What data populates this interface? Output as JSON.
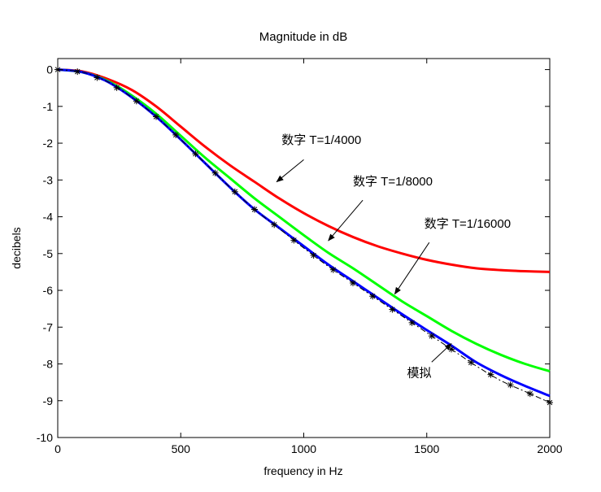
{
  "chart_data": {
    "type": "line",
    "title": "Magnitude in dB",
    "xlabel": "frequency in Hz",
    "ylabel": "decibels",
    "xlim": [
      0,
      2000
    ],
    "ylim": [
      -10,
      0.3
    ],
    "grid": false,
    "xticks": [
      0,
      500,
      1000,
      1500,
      2000
    ],
    "xtick_labels": [
      "0",
      "500",
      "1000",
      "1500",
      "2000"
    ],
    "yticks": [
      0,
      -1,
      -2,
      -3,
      -4,
      -5,
      -6,
      -7,
      -8,
      -9,
      -10
    ],
    "ytick_labels": [
      "0",
      "-1",
      "-2",
      "-3",
      "-4",
      "-5",
      "-6",
      "-7",
      "-8",
      "-9",
      "-10"
    ],
    "x": [
      0,
      100,
      200,
      300,
      400,
      500,
      600,
      700,
      800,
      900,
      1000,
      1100,
      1200,
      1300,
      1400,
      1500,
      1600,
      1700,
      1800,
      1900,
      2000
    ],
    "series": [
      {
        "color": "#ff0000",
        "style": "solid",
        "values": [
          0,
          -0.05,
          -0.25,
          -0.55,
          -1.0,
          -1.55,
          -2.1,
          -2.6,
          -3.05,
          -3.5,
          -3.9,
          -4.25,
          -4.55,
          -4.8,
          -5.0,
          -5.17,
          -5.3,
          -5.4,
          -5.45,
          -5.48,
          -5.5
        ]
      },
      {
        "color": "#00ff00",
        "style": "solid",
        "values": [
          0,
          -0.07,
          -0.3,
          -0.7,
          -1.2,
          -1.8,
          -2.4,
          -2.95,
          -3.5,
          -4.0,
          -4.5,
          -4.98,
          -5.4,
          -5.85,
          -6.3,
          -6.7,
          -7.1,
          -7.45,
          -7.75,
          -8.0,
          -8.2
        ]
      },
      {
        "color": "#0000ff",
        "style": "solid",
        "values": [
          0,
          -0.07,
          -0.32,
          -0.75,
          -1.28,
          -1.9,
          -2.55,
          -3.2,
          -3.8,
          -4.3,
          -4.8,
          -5.3,
          -5.75,
          -6.2,
          -6.65,
          -7.08,
          -7.5,
          -7.95,
          -8.3,
          -8.6,
          -8.87
        ]
      },
      {
        "color": "#000000",
        "style": "dashdot-star",
        "values": [
          0,
          -0.07,
          -0.32,
          -0.75,
          -1.28,
          -1.9,
          -2.55,
          -3.2,
          -3.8,
          -4.32,
          -4.85,
          -5.35,
          -5.8,
          -6.25,
          -6.7,
          -7.15,
          -7.6,
          -8.05,
          -8.45,
          -8.75,
          -9.05
        ]
      }
    ],
    "annotations": [
      {
        "text": "数字 T=1/4000",
        "text_x": 910,
        "text_y": -2.02,
        "arrow_from": [
          1000,
          -2.45
        ],
        "arrow_to": [
          890,
          -3.05
        ]
      },
      {
        "text": "数字 T=1/8000",
        "text_x": 1200,
        "text_y": -3.15,
        "arrow_from": [
          1240,
          -3.55
        ],
        "arrow_to": [
          1100,
          -4.65
        ]
      },
      {
        "text": "数字 T=1/16000",
        "text_x": 1490,
        "text_y": -4.3,
        "arrow_from": [
          1510,
          -4.7
        ],
        "arrow_to": [
          1370,
          -6.1
        ]
      },
      {
        "text": "模拟",
        "text_x": 1420,
        "text_y": -8.35,
        "arrow_from": [
          1520,
          -7.95
        ],
        "arrow_to": [
          1600,
          -7.45
        ]
      }
    ]
  }
}
